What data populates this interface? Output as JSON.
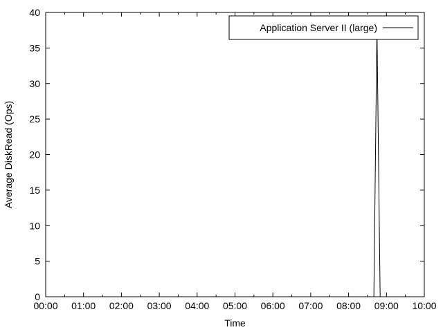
{
  "chart_data": {
    "type": "line",
    "title": "",
    "xlabel": "Time",
    "ylabel": "Average DiskRead (Ops)",
    "xlim": [
      "00:00",
      "10:00"
    ],
    "ylim": [
      0,
      40
    ],
    "x_ticks": [
      "00:00",
      "01:00",
      "02:00",
      "03:00",
      "04:00",
      "05:00",
      "06:00",
      "07:00",
      "08:00",
      "09:00",
      "10:00"
    ],
    "y_ticks": [
      "0",
      "5",
      "10",
      "15",
      "20",
      "25",
      "30",
      "35",
      "40"
    ],
    "grid": false,
    "legend_position": "top-right",
    "series": [
      {
        "name": "Application Server II (large)",
        "color": "#000000",
        "points": [
          {
            "x": "08:40",
            "y": 0
          },
          {
            "x": "08:45",
            "y": 38
          },
          {
            "x": "08:50",
            "y": 0
          }
        ]
      }
    ]
  }
}
